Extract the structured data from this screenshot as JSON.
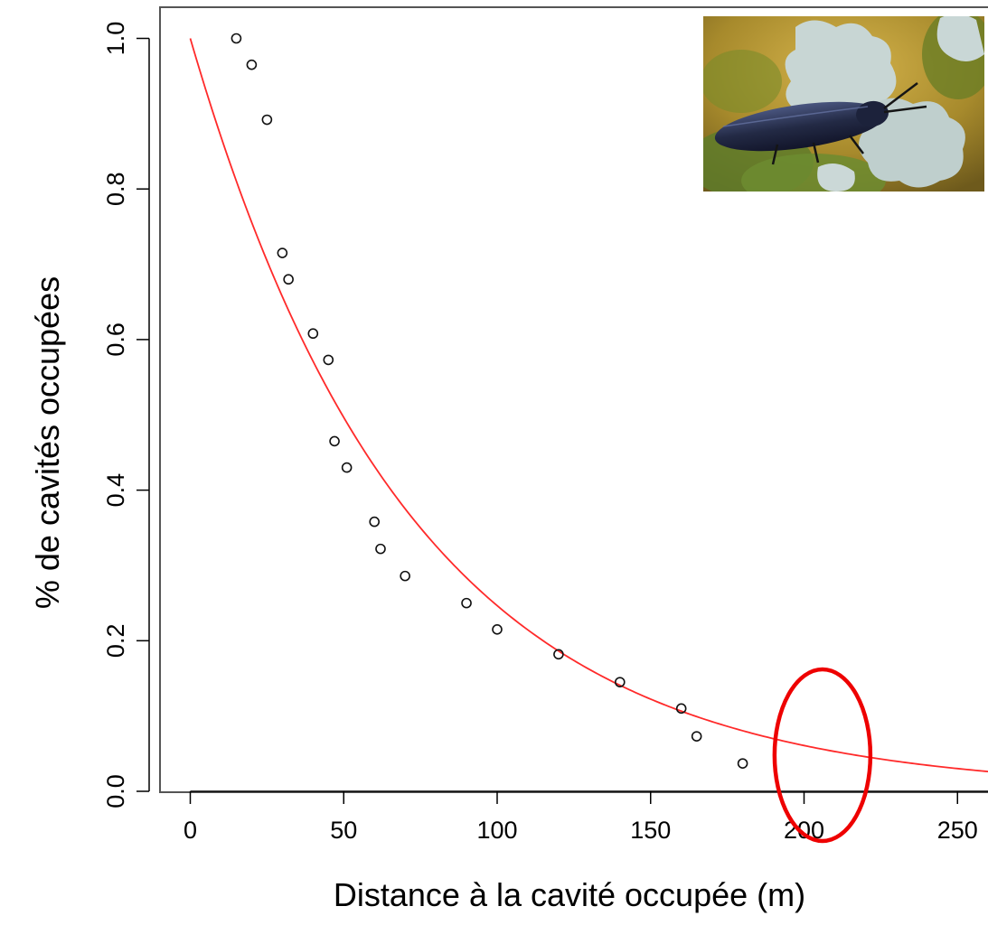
{
  "chart_data": {
    "type": "scatter",
    "title": "",
    "xlabel": "Distance à la cavité occupée (m)",
    "ylabel": "% de cavités occupées",
    "xlim": [
      -10,
      260
    ],
    "ylim": [
      -0.01,
      1.04
    ],
    "xticks": [
      0,
      50,
      100,
      150,
      200,
      250
    ],
    "yticks": [
      0.0,
      0.2,
      0.4,
      0.6,
      0.8,
      1.0
    ],
    "xtick_labels": [
      "0",
      "50",
      "100",
      "150",
      "200",
      "250"
    ],
    "ytick_labels": [
      "0.0",
      "0.2",
      "0.4",
      "0.6",
      "0.8",
      "1.0"
    ],
    "grid": false,
    "points": {
      "x": [
        15,
        20,
        25,
        30,
        32,
        40,
        45,
        47,
        51,
        60,
        62,
        70,
        90,
        100,
        120,
        140,
        160,
        165,
        180
      ],
      "y": [
        1.0,
        0.965,
        0.892,
        0.715,
        0.68,
        0.608,
        0.573,
        0.465,
        0.43,
        0.358,
        0.322,
        0.286,
        0.25,
        0.215,
        0.182,
        0.145,
        0.11,
        0.073,
        0.037
      ]
    },
    "fit_curve": {
      "formula": "y = exp(-0.014 * x)",
      "rate": 0.014,
      "x_range": [
        0,
        260
      ],
      "color": "#ff2a2a"
    },
    "annotation": {
      "type": "ellipse",
      "center_x": 206,
      "center_y": 0.048,
      "color": "#ee0000"
    },
    "inset_image": {
      "icon": "click-beetle-photo",
      "colors": {
        "background": "#a78a2c",
        "moss": "#5f7d2a",
        "lichen": "#c8d6d4",
        "beetle": "#232a45"
      }
    }
  }
}
